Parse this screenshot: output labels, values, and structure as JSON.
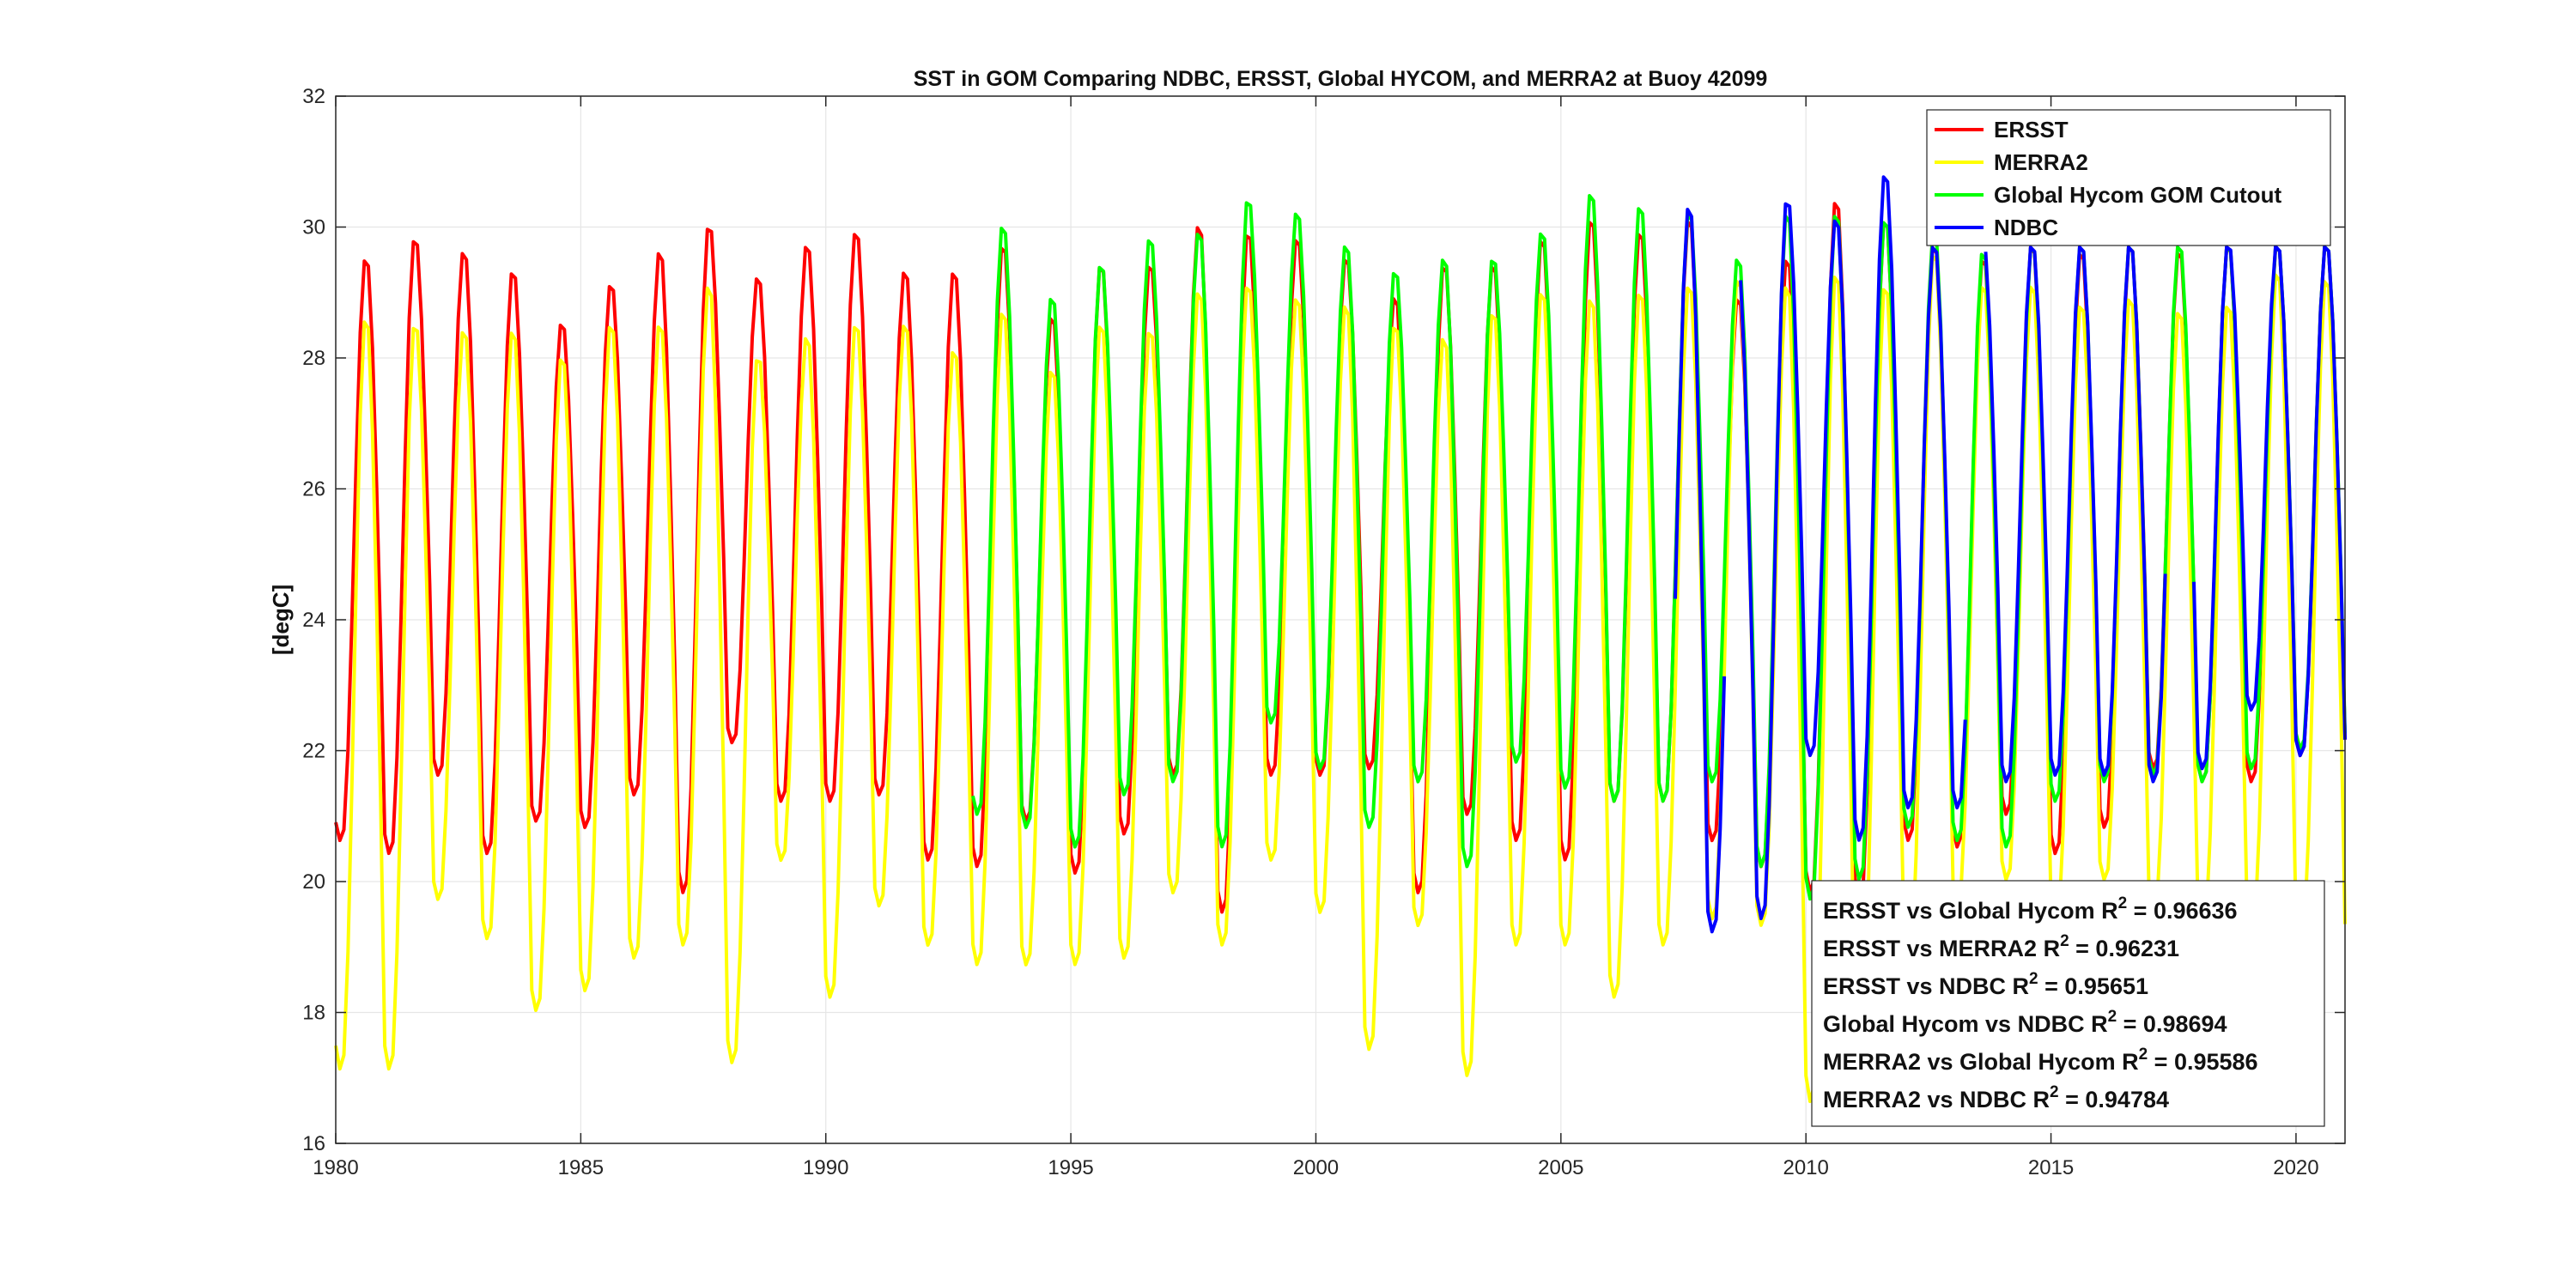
{
  "chart_data": {
    "type": "line",
    "title": "SST in GOM Comparing NDBC, ERSST, Global HYCOM, and MERRA2 at Buoy  42099",
    "xlabel": "",
    "ylabel": "[degC]",
    "xlim": [
      1980,
      2021
    ],
    "ylim": [
      16,
      32
    ],
    "x_ticks": [
      "1980",
      "1985",
      "1990",
      "1995",
      "2000",
      "2005",
      "2010",
      "2015",
      "2020"
    ],
    "y_ticks": [
      "16",
      "18",
      "20",
      "22",
      "24",
      "26",
      "28",
      "30",
      "32"
    ],
    "grid": true,
    "legend_position": "top-right",
    "series": [
      {
        "name": "ERSST",
        "color": "#ff0000",
        "x_range": [
          1980.0,
          2021.0
        ],
        "cycle": "monthly seasonal cycle",
        "summer_peaks": [
          29.6,
          29.9,
          29.7,
          29.4,
          28.6,
          29.2,
          29.7,
          30.1,
          29.3,
          29.8,
          30.0,
          29.4,
          29.4,
          29.8,
          28.7,
          29.5,
          29.5,
          30.1,
          30.0,
          29.9,
          29.6,
          29.0,
          29.5,
          29.5,
          29.9,
          30.2,
          30.0,
          30.2,
          29.0,
          29.6,
          30.5,
          30.2,
          29.8,
          29.6,
          29.8,
          29.7,
          29.8,
          29.7,
          29.8,
          29.8,
          29.8
        ],
        "winter_troughs": [
          20.6,
          20.4,
          21.6,
          20.4,
          20.9,
          20.8,
          21.3,
          19.8,
          22.1,
          21.2,
          21.2,
          21.3,
          20.3,
          20.2,
          20.9,
          20.1,
          20.7,
          21.6,
          19.5,
          21.6,
          21.6,
          21.7,
          19.8,
          21.0,
          20.6,
          20.3,
          21.2,
          21.2,
          20.6,
          20.2,
          19.8,
          19.7,
          20.6,
          20.5,
          21.0,
          20.4,
          20.8,
          21.7,
          21.5,
          21.5,
          21.9
        ]
      },
      {
        "name": "MERRA2",
        "color": "#ffff00",
        "x_range": [
          1980.0,
          2021.0
        ],
        "cycle": "monthly seasonal cycle",
        "summer_peaks": [
          28.7,
          28.6,
          28.5,
          28.5,
          28.1,
          28.6,
          28.6,
          29.2,
          28.1,
          28.4,
          28.6,
          28.6,
          28.2,
          28.8,
          27.9,
          28.6,
          28.5,
          29.1,
          29.2,
          29.0,
          28.9,
          28.6,
          28.4,
          28.8,
          29.1,
          29.0,
          29.1,
          29.2,
          29.3,
          29.2,
          29.4,
          29.2,
          29.7,
          29.2,
          29.2,
          28.9,
          29.0,
          28.8,
          28.9,
          29.4,
          29.3
        ],
        "winter_troughs": [
          17.1,
          17.1,
          19.7,
          19.1,
          18.0,
          18.3,
          18.8,
          19.0,
          17.2,
          20.3,
          18.2,
          19.6,
          19.0,
          18.7,
          18.7,
          18.7,
          18.8,
          19.8,
          19.0,
          20.3,
          19.5,
          17.4,
          19.3,
          17.0,
          19.0,
          19.0,
          18.2,
          19.0,
          19.4,
          19.3,
          16.6,
          17.2,
          18.7,
          19.7,
          20.0,
          19.3,
          20.0,
          19.5,
          19.2,
          19.2,
          19.0
        ]
      },
      {
        "name": "Global Hycom GOM Cutout",
        "color": "#00ff00",
        "x_range": [
          1993.0,
          2021.0
        ],
        "cycle": "monthly seasonal cycle",
        "summer_peaks": [
          30.1,
          29.0,
          29.5,
          29.9,
          30.0,
          30.5,
          30.3,
          29.8,
          29.4,
          29.6,
          29.6,
          30.0,
          30.6,
          30.4,
          30.3,
          29.6,
          30.3,
          30.3,
          30.2,
          30.0,
          29.7,
          29.8,
          29.8,
          29.8,
          29.8,
          29.8,
          29.8,
          29.8
        ],
        "winter_troughs": [
          21.0,
          20.8,
          20.5,
          21.3,
          21.5,
          20.5,
          22.4,
          21.7,
          20.8,
          21.5,
          20.2,
          21.8,
          21.4,
          21.2,
          21.2,
          21.5,
          20.2,
          19.7,
          20.0,
          20.8,
          20.6,
          20.5,
          21.2,
          21.5,
          21.6,
          21.5,
          21.7,
          22.0
        ]
      },
      {
        "name": "NDBC",
        "color": "#0000ff",
        "x_range": [
          2007.3,
          2021.0
        ],
        "gaps": [
          [
            2008.4,
            2008.6
          ],
          [
            2013.3,
            2013.6
          ],
          [
            2017.4,
            2017.9
          ]
        ],
        "cycle": "monthly seasonal cycle",
        "summer_peaks": [
          30.4,
          29.4,
          30.5,
          30.2,
          30.9,
          29.8,
          29.8,
          29.8,
          29.8,
          29.8,
          29.8,
          29.8,
          29.8,
          29.8
        ],
        "winter_troughs": [
          20.5,
          19.2,
          19.4,
          21.9,
          20.6,
          21.1,
          21.1,
          21.5,
          21.6,
          21.6,
          21.5,
          21.7,
          22.6,
          21.9
        ]
      }
    ],
    "annotations": [
      {
        "text": "ERSST vs Global Hycom R",
        "sup": "2",
        "value": " = 0.96636"
      },
      {
        "text": "ERSST vs MERRA2 R",
        "sup": "2",
        "value": " = 0.96231"
      },
      {
        "text": "ERSST vs NDBC R",
        "sup": "2",
        "value": " = 0.95651"
      },
      {
        "text": "Global Hycom vs NDBC R",
        "sup": "2",
        "value": " = 0.98694"
      },
      {
        "text": "MERRA2 vs Global Hycom R",
        "sup": "2",
        "value": " = 0.95586"
      },
      {
        "text": "MERRA2 vs NDBC R",
        "sup": "2",
        "value": " = 0.94784"
      }
    ]
  }
}
